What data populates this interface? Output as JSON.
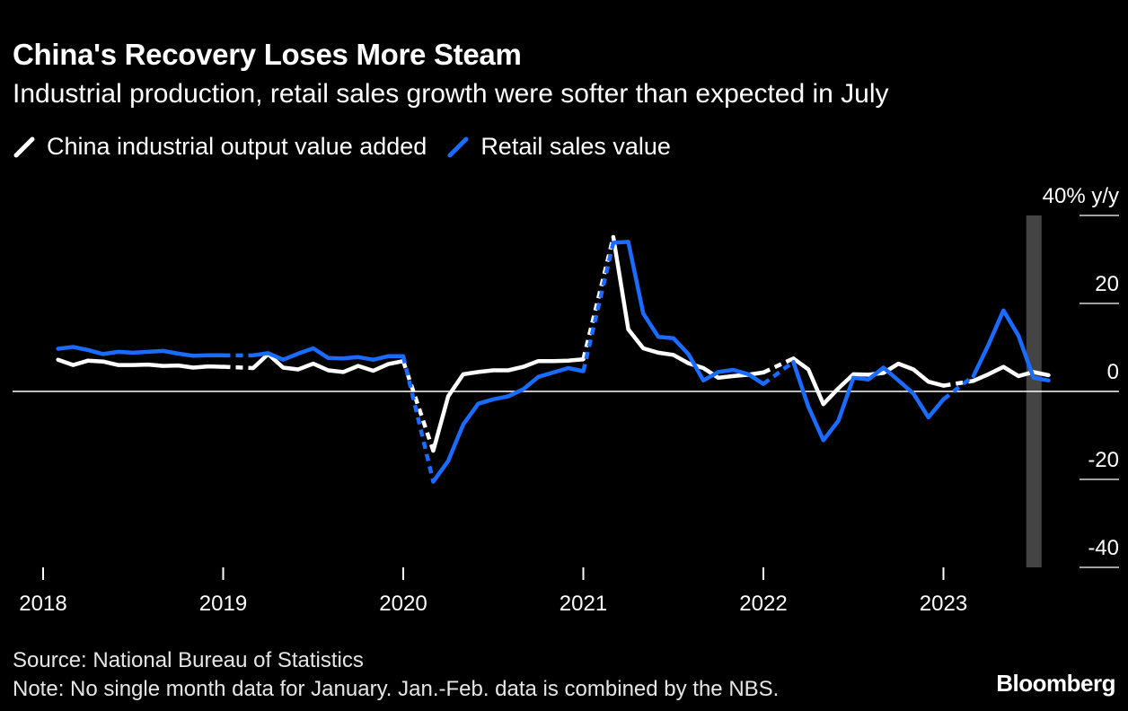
{
  "header": {
    "title": "China's Recovery Loses More Steam",
    "subtitle": "Industrial production, retail sales growth were softer than expected in July"
  },
  "legend": {
    "items": [
      {
        "label": "China industrial output value added",
        "color": "#ffffff"
      },
      {
        "label": "Retail sales value",
        "color": "#1a6bff"
      }
    ]
  },
  "footer": {
    "source": "Source: National Bureau of Statistics",
    "note": "Note: No single month data for January. Jan.-Feb. data is combined by the NBS.",
    "brand": "Bloomberg"
  },
  "chart_data": {
    "type": "line",
    "ylabel": "40% y/y",
    "ylim": [
      -40,
      40
    ],
    "yticks": [
      {
        "value": 40,
        "label": "40% y/y"
      },
      {
        "value": 20,
        "label": "20"
      },
      {
        "value": 0,
        "label": "0"
      },
      {
        "value": -20,
        "label": "-20"
      },
      {
        "value": -40,
        "label": "-40"
      }
    ],
    "xlim": [
      "2018-01",
      "2023-12"
    ],
    "xticks": [
      "2018",
      "2019",
      "2020",
      "2021",
      "2022",
      "2023"
    ],
    "highlight_period": "2023-07",
    "colors": {
      "background": "#000000",
      "industrial": "#ffffff",
      "retail": "#1a6bff",
      "highlight": "#444444",
      "zero_line": "#ffffff",
      "grid": "#ffffff"
    },
    "note": "January values absent; dashed segment bridges Dec to Jan-Feb combined value",
    "series": [
      {
        "name": "China industrial output value added",
        "color": "#ffffff",
        "points": [
          [
            "2018-02",
            7.2
          ],
          [
            "2018-03",
            6.0
          ],
          [
            "2018-04",
            7.0
          ],
          [
            "2018-05",
            6.8
          ],
          [
            "2018-06",
            6.0
          ],
          [
            "2018-07",
            6.0
          ],
          [
            "2018-08",
            6.1
          ],
          [
            "2018-09",
            5.8
          ],
          [
            "2018-10",
            5.9
          ],
          [
            "2018-11",
            5.4
          ],
          [
            "2018-12",
            5.7
          ],
          [
            "2019-01",
            5.6
          ],
          [
            "2019-03",
            5.3
          ],
          [
            "2019-04",
            8.5
          ],
          [
            "2019-05",
            5.4
          ],
          [
            "2019-06",
            5.0
          ],
          [
            "2019-07",
            6.3
          ],
          [
            "2019-08",
            4.8
          ],
          [
            "2019-09",
            4.4
          ],
          [
            "2019-10",
            5.8
          ],
          [
            "2019-11",
            4.7
          ],
          [
            "2019-12",
            6.2
          ],
          [
            "2020-01",
            6.9
          ],
          [
            "2020-03",
            -13.5
          ],
          [
            "2020-04",
            -1.1
          ],
          [
            "2020-05",
            3.9
          ],
          [
            "2020-06",
            4.4
          ],
          [
            "2020-07",
            4.8
          ],
          [
            "2020-08",
            4.8
          ],
          [
            "2020-09",
            5.6
          ],
          [
            "2020-10",
            6.9
          ],
          [
            "2020-11",
            6.9
          ],
          [
            "2020-12",
            7.0
          ],
          [
            "2021-01",
            7.3
          ],
          [
            "2021-03",
            35.1
          ],
          [
            "2021-04",
            14.1
          ],
          [
            "2021-05",
            9.8
          ],
          [
            "2021-06",
            8.8
          ],
          [
            "2021-07",
            8.3
          ],
          [
            "2021-08",
            6.4
          ],
          [
            "2021-09",
            5.3
          ],
          [
            "2021-10",
            3.1
          ],
          [
            "2021-11",
            3.5
          ],
          [
            "2021-12",
            3.8
          ],
          [
            "2022-01",
            4.3
          ],
          [
            "2022-03",
            7.5
          ],
          [
            "2022-04",
            5.0
          ],
          [
            "2022-05",
            -2.9
          ],
          [
            "2022-06",
            0.7
          ],
          [
            "2022-07",
            3.9
          ],
          [
            "2022-08",
            3.8
          ],
          [
            "2022-09",
            4.2
          ],
          [
            "2022-10",
            6.3
          ],
          [
            "2022-11",
            5.0
          ],
          [
            "2022-12",
            2.2
          ],
          [
            "2023-01",
            1.3
          ],
          [
            "2023-03",
            2.4
          ],
          [
            "2023-04",
            3.9
          ],
          [
            "2023-05",
            5.6
          ],
          [
            "2023-06",
            3.5
          ],
          [
            "2023-07",
            4.4
          ],
          [
            "2023-08",
            3.7
          ]
        ]
      },
      {
        "name": "Retail sales value",
        "color": "#1a6bff",
        "points": [
          [
            "2018-02",
            9.7
          ],
          [
            "2018-03",
            10.1
          ],
          [
            "2018-04",
            9.4
          ],
          [
            "2018-05",
            8.5
          ],
          [
            "2018-06",
            9.0
          ],
          [
            "2018-07",
            8.8
          ],
          [
            "2018-08",
            9.0
          ],
          [
            "2018-09",
            9.2
          ],
          [
            "2018-10",
            8.6
          ],
          [
            "2018-11",
            8.1
          ],
          [
            "2018-12",
            8.2
          ],
          [
            "2019-01",
            8.2
          ],
          [
            "2019-03",
            8.2
          ],
          [
            "2019-04",
            8.7
          ],
          [
            "2019-05",
            7.2
          ],
          [
            "2019-06",
            8.6
          ],
          [
            "2019-07",
            9.8
          ],
          [
            "2019-08",
            7.6
          ],
          [
            "2019-09",
            7.5
          ],
          [
            "2019-10",
            7.8
          ],
          [
            "2019-11",
            7.2
          ],
          [
            "2019-12",
            8.0
          ],
          [
            "2020-01",
            8.0
          ],
          [
            "2020-03",
            -20.5
          ],
          [
            "2020-04",
            -15.8
          ],
          [
            "2020-05",
            -7.5
          ],
          [
            "2020-06",
            -2.8
          ],
          [
            "2020-07",
            -1.8
          ],
          [
            "2020-08",
            -1.1
          ],
          [
            "2020-09",
            0.5
          ],
          [
            "2020-10",
            3.3
          ],
          [
            "2020-11",
            4.3
          ],
          [
            "2020-12",
            5.3
          ],
          [
            "2021-01",
            4.6
          ],
          [
            "2021-03",
            33.8
          ],
          [
            "2021-04",
            34.0
          ],
          [
            "2021-05",
            17.7
          ],
          [
            "2021-06",
            12.4
          ],
          [
            "2021-07",
            12.1
          ],
          [
            "2021-08",
            8.5
          ],
          [
            "2021-09",
            2.5
          ],
          [
            "2021-10",
            4.4
          ],
          [
            "2021-11",
            4.9
          ],
          [
            "2021-12",
            3.9
          ],
          [
            "2022-01",
            1.7
          ],
          [
            "2022-03",
            6.7
          ],
          [
            "2022-04",
            -3.5
          ],
          [
            "2022-05",
            -11.1
          ],
          [
            "2022-06",
            -6.7
          ],
          [
            "2022-07",
            3.1
          ],
          [
            "2022-08",
            2.7
          ],
          [
            "2022-09",
            5.4
          ],
          [
            "2022-10",
            2.5
          ],
          [
            "2022-11",
            -0.5
          ],
          [
            "2022-12",
            -5.9
          ],
          [
            "2023-01",
            -1.8
          ],
          [
            "2023-03",
            3.5
          ],
          [
            "2023-04",
            10.6
          ],
          [
            "2023-05",
            18.4
          ],
          [
            "2023-06",
            12.7
          ],
          [
            "2023-07",
            3.1
          ],
          [
            "2023-08",
            2.5
          ]
        ]
      }
    ]
  }
}
